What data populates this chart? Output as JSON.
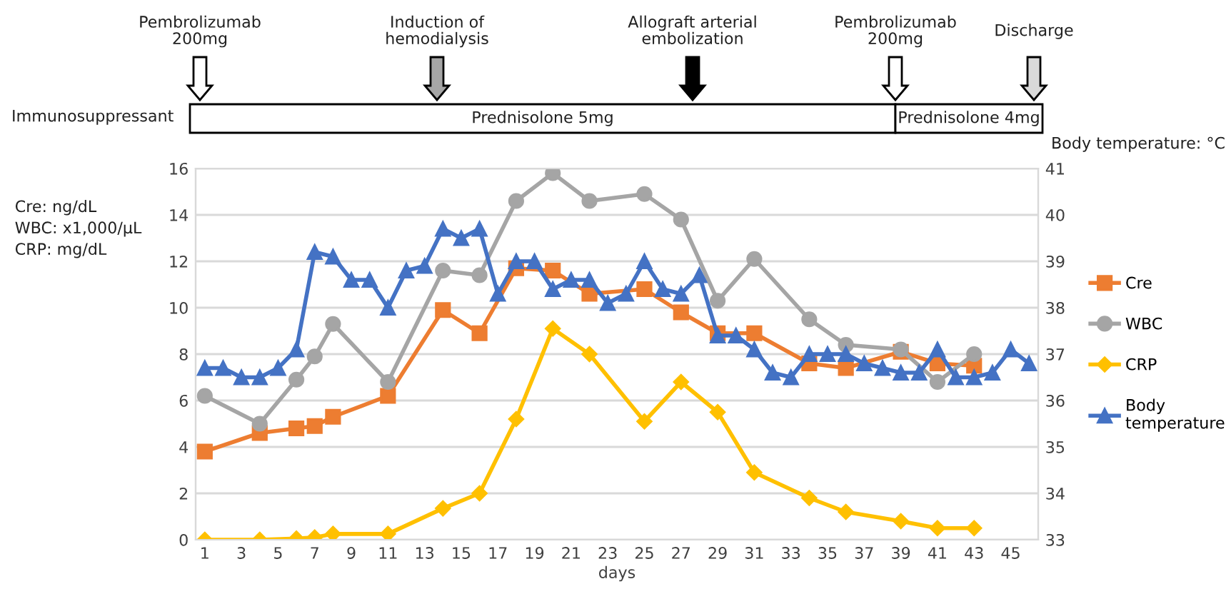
{
  "chart_data": {
    "type": "line",
    "xlabel": "days",
    "ylabel": "Cre: ng/dL\nWBC: x1,000/μL\nCRP: mg/dL",
    "y2label": "Body temperature: °C",
    "xlim": [
      0.5,
      46.5
    ],
    "xticks": [
      1,
      3,
      5,
      7,
      9,
      11,
      13,
      15,
      17,
      19,
      21,
      23,
      25,
      27,
      29,
      31,
      33,
      35,
      37,
      39,
      41,
      43,
      45
    ],
    "ylim": [
      0,
      16
    ],
    "yticks": [
      0,
      2,
      4,
      6,
      8,
      10,
      12,
      14,
      16
    ],
    "y2lim": [
      33,
      41
    ],
    "y2ticks": [
      33,
      34,
      35,
      36,
      37,
      38,
      39,
      40,
      41
    ],
    "grid": "y",
    "legend": "right",
    "annotations": [
      "Pembrolizumab\n200mg",
      "Induction of\nhemodialysis",
      "Allograft arterial\nembolization",
      "Pembrolizumab\n200mg",
      "Discharge",
      "Immunosuppressant",
      "Prednisolone 5mg",
      "Prednisolone 4mg"
    ],
    "series": [
      {
        "name": "Cre",
        "color": "#ed7d31",
        "marker": "square",
        "x": [
          1,
          4,
          6,
          7,
          8,
          11,
          14,
          16,
          18,
          20,
          22,
          25,
          27,
          29,
          31,
          34,
          36,
          39,
          41,
          43
        ],
        "values": [
          3.8,
          4.6,
          4.8,
          4.9,
          5.3,
          6.2,
          9.9,
          8.9,
          11.7,
          11.6,
          10.6,
          10.8,
          9.8,
          8.9,
          8.9,
          7.6,
          7.4,
          8.1,
          7.6,
          7.5
        ]
      },
      {
        "name": "WBC",
        "color": "#a5a5a5",
        "marker": "circle",
        "x": [
          1,
          4,
          6,
          7,
          8,
          11,
          14,
          16,
          18,
          20,
          22,
          25,
          27,
          29,
          31,
          34,
          36,
          39,
          41,
          43
        ],
        "values": [
          6.2,
          5.0,
          6.9,
          7.9,
          9.3,
          6.8,
          11.6,
          11.4,
          14.6,
          15.8,
          14.6,
          14.9,
          13.8,
          10.3,
          12.1,
          9.5,
          8.4,
          8.2,
          6.8,
          8.0
        ]
      },
      {
        "name": "CRP",
        "color": "#ffc000",
        "marker": "diamond",
        "x": [
          1,
          4,
          6,
          7,
          8,
          11,
          14,
          16,
          18,
          20,
          22,
          25,
          27,
          29,
          31,
          34,
          36,
          39,
          41,
          43
        ],
        "values": [
          0,
          0,
          0.05,
          0.1,
          0.25,
          0.25,
          1.35,
          2.0,
          5.2,
          9.1,
          8.0,
          5.1,
          6.8,
          5.5,
          2.9,
          1.8,
          1.2,
          0.8,
          0.5,
          0.5
        ]
      },
      {
        "name": "Body\ntemperature",
        "color": "#4472c4",
        "marker": "triangle",
        "axis": "y2",
        "x": [
          1,
          2,
          3,
          4,
          5,
          6,
          7,
          8,
          9,
          10,
          11,
          12,
          13,
          14,
          15,
          16,
          17,
          18,
          19,
          20,
          21,
          22,
          23,
          24,
          25,
          26,
          27,
          28,
          29,
          30,
          31,
          32,
          33,
          34,
          35,
          36,
          37,
          38,
          39,
          40,
          41,
          42,
          43,
          44,
          45,
          46
        ],
        "values": [
          36.7,
          36.7,
          36.5,
          36.5,
          36.7,
          37.1,
          39.2,
          39.1,
          38.6,
          38.6,
          38.0,
          38.8,
          38.9,
          39.7,
          39.5,
          39.7,
          38.3,
          39.0,
          39.0,
          38.4,
          38.6,
          38.6,
          38.1,
          38.3,
          39.0,
          38.4,
          38.3,
          38.7,
          37.4,
          37.4,
          37.1,
          36.6,
          36.5,
          37.0,
          37.0,
          37.0,
          36.8,
          36.7,
          36.6,
          36.6,
          37.1,
          36.5,
          36.5,
          36.6,
          37.1,
          36.8
        ]
      }
    ]
  }
}
